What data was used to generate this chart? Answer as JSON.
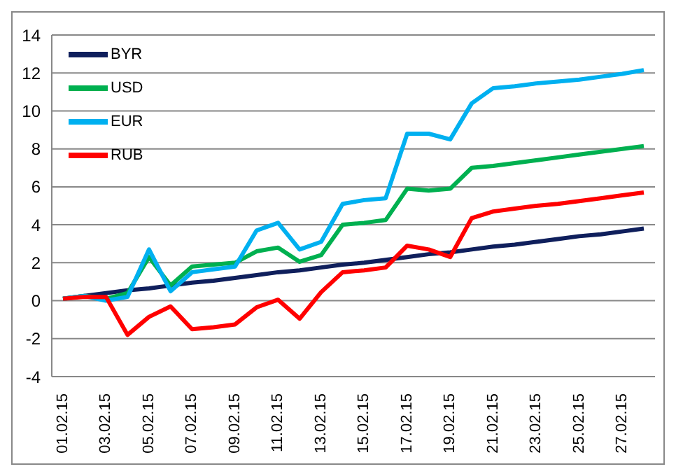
{
  "chart_data": {
    "type": "line",
    "categories": [
      "01.02.15",
      null,
      "03.02.15",
      null,
      "05.02.15",
      null,
      "07.02.15",
      null,
      "09.02.15",
      null,
      "11.02.15",
      null,
      "13.02.15",
      null,
      "15.02.15",
      null,
      "17.02.15",
      null,
      "19.02.15",
      null,
      "21.02.15",
      null,
      "23.02.15",
      null,
      "25.02.15",
      null,
      "27.02.15",
      null
    ],
    "series": [
      {
        "name": "BYR",
        "color": "#0f1f5c",
        "values": [
          0.1,
          0.25,
          0.4,
          0.55,
          0.65,
          0.8,
          0.95,
          1.05,
          1.2,
          1.35,
          1.5,
          1.6,
          1.75,
          1.9,
          2.0,
          2.15,
          2.3,
          2.45,
          2.55,
          2.7,
          2.85,
          2.95,
          3.1,
          3.25,
          3.4,
          3.5,
          3.65,
          3.8
        ]
      },
      {
        "name": "USD",
        "color": "#00b050",
        "values": [
          0.1,
          0.25,
          0.1,
          0.4,
          2.3,
          0.8,
          1.8,
          1.9,
          2.0,
          2.6,
          2.8,
          2.05,
          2.4,
          4.0,
          4.1,
          4.25,
          5.9,
          5.8,
          5.9,
          7.0,
          7.1,
          7.25,
          7.4,
          7.55,
          7.7,
          7.85,
          8.0,
          8.15
        ]
      },
      {
        "name": "EUR",
        "color": "#00b0f0",
        "values": [
          0.1,
          0.25,
          0.0,
          0.2,
          2.7,
          0.5,
          1.5,
          1.65,
          1.8,
          3.7,
          4.1,
          2.7,
          3.1,
          5.1,
          5.3,
          5.4,
          8.8,
          8.8,
          8.5,
          10.4,
          11.2,
          11.3,
          11.45,
          11.55,
          11.65,
          11.8,
          11.95,
          12.15
        ]
      },
      {
        "name": "RUB",
        "color": "#ff0000",
        "values": [
          0.1,
          0.2,
          0.2,
          -1.8,
          -0.85,
          -0.3,
          -1.5,
          -1.4,
          -1.25,
          -0.35,
          0.05,
          -0.95,
          0.45,
          1.5,
          1.6,
          1.75,
          2.9,
          2.7,
          2.3,
          4.35,
          4.7,
          4.85,
          5.0,
          5.1,
          5.25,
          5.4,
          5.55,
          5.7
        ]
      }
    ],
    "ylim": [
      -4,
      14
    ],
    "yticks": [
      -4,
      -2,
      0,
      2,
      4,
      6,
      8,
      10,
      12,
      14
    ],
    "grid": "y",
    "legend": "top left",
    "marker": "none",
    "line_style": "solid"
  }
}
